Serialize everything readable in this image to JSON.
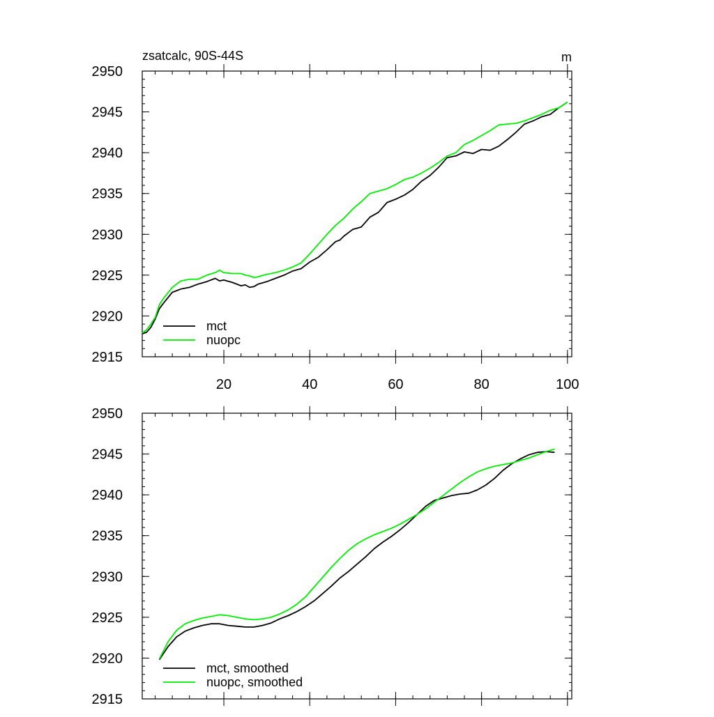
{
  "colors": {
    "mct": "#000000",
    "nuopc": "#00ee00",
    "frame": "#000000",
    "background": "#ffffff"
  },
  "chart_data": [
    {
      "type": "line",
      "title": "zsatcalc, 90S-44S",
      "units": "m",
      "xlim": [
        1,
        101
      ],
      "ylim": [
        2915,
        2950
      ],
      "x_ticks": [
        20,
        40,
        60,
        80,
        100
      ],
      "y_ticks": [
        2915,
        2920,
        2925,
        2930,
        2935,
        2940,
        2945,
        2950
      ],
      "show_x_tick_labels": true,
      "legend_position": "bottom-left",
      "series": [
        {
          "name": "mct",
          "color": "#000000",
          "x": [
            1,
            2,
            3,
            4,
            5,
            6,
            8,
            10,
            12,
            14,
            16,
            18,
            19,
            20,
            22,
            24,
            25,
            26,
            27,
            28,
            30,
            32,
            34,
            36,
            38,
            40,
            42,
            44,
            46,
            47,
            48,
            50,
            52,
            54,
            56,
            58,
            60,
            62,
            64,
            66,
            68,
            70,
            72,
            74,
            76,
            78,
            80,
            82,
            84,
            86,
            88,
            90,
            92,
            94,
            96,
            98,
            100
          ],
          "y": [
            2917.8,
            2918.0,
            2918.6,
            2919.6,
            2920.9,
            2921.6,
            2922.9,
            2923.3,
            2923.5,
            2923.9,
            2924.2,
            2924.6,
            2924.3,
            2924.4,
            2924.1,
            2923.7,
            2923.8,
            2923.5,
            2923.6,
            2923.9,
            2924.2,
            2924.6,
            2925.0,
            2925.5,
            2925.8,
            2926.6,
            2927.2,
            2928.1,
            2929.1,
            2929.3,
            2929.8,
            2930.6,
            2930.9,
            2932.1,
            2932.7,
            2933.9,
            2934.3,
            2934.8,
            2935.5,
            2936.5,
            2937.2,
            2938.2,
            2939.4,
            2939.6,
            2940.1,
            2939.9,
            2940.4,
            2940.3,
            2940.8,
            2941.6,
            2942.5,
            2943.5,
            2943.9,
            2944.4,
            2944.7,
            2945.5,
            2946.2
          ]
        },
        {
          "name": "nuopc",
          "color": "#00ee00",
          "x": [
            1,
            2,
            3,
            4,
            5,
            6,
            8,
            10,
            12,
            14,
            16,
            18,
            19,
            20,
            22,
            24,
            25,
            26,
            27,
            28,
            30,
            32,
            34,
            36,
            38,
            40,
            42,
            44,
            46,
            48,
            50,
            52,
            54,
            56,
            58,
            60,
            62,
            64,
            66,
            68,
            70,
            72,
            74,
            76,
            78,
            80,
            82,
            84,
            86,
            88,
            90,
            92,
            94,
            96,
            98,
            100
          ],
          "y": [
            2917.9,
            2918.3,
            2919.0,
            2919.8,
            2921.4,
            2922.2,
            2923.5,
            2924.3,
            2924.5,
            2924.5,
            2925.0,
            2925.3,
            2925.6,
            2925.3,
            2925.2,
            2925.2,
            2925.0,
            2924.9,
            2924.7,
            2924.8,
            2925.1,
            2925.3,
            2925.6,
            2926.0,
            2926.5,
            2927.6,
            2928.8,
            2930.0,
            2931.1,
            2932.0,
            2933.1,
            2934.0,
            2935.0,
            2935.3,
            2935.6,
            2936.1,
            2936.7,
            2937.0,
            2937.5,
            2938.1,
            2938.8,
            2939.6,
            2940.0,
            2941.0,
            2941.5,
            2942.1,
            2942.7,
            2943.4,
            2943.5,
            2943.6,
            2943.9,
            2944.3,
            2944.7,
            2945.2,
            2945.5,
            2946.2
          ]
        }
      ]
    },
    {
      "type": "line",
      "title": "",
      "xlim": [
        1,
        101
      ],
      "ylim": [
        2915,
        2950
      ],
      "x_ticks": [
        20,
        40,
        60,
        80,
        100
      ],
      "y_ticks": [
        2915,
        2920,
        2925,
        2930,
        2935,
        2940,
        2945,
        2950
      ],
      "show_x_tick_labels": false,
      "legend_position": "bottom-left",
      "series": [
        {
          "name": "mct, smoothed",
          "color": "#000000",
          "x": [
            5,
            7,
            9,
            11,
            13,
            15,
            17,
            19,
            21,
            23,
            25,
            27,
            29,
            31,
            33,
            35,
            37,
            39,
            41,
            43,
            45,
            47,
            49,
            51,
            53,
            55,
            57,
            59,
            61,
            63,
            65,
            67,
            69,
            71,
            73,
            75,
            77,
            79,
            81,
            83,
            85,
            87,
            89,
            91,
            93,
            95,
            97
          ],
          "y": [
            2919.8,
            2921.4,
            2922.6,
            2923.3,
            2923.7,
            2924.0,
            2924.2,
            2924.2,
            2924.0,
            2923.9,
            2923.8,
            2923.8,
            2924.0,
            2924.3,
            2924.8,
            2925.2,
            2925.7,
            2926.3,
            2927.0,
            2927.9,
            2928.8,
            2929.8,
            2930.6,
            2931.5,
            2932.4,
            2933.4,
            2934.2,
            2934.9,
            2935.7,
            2936.6,
            2937.6,
            2938.6,
            2939.3,
            2939.6,
            2939.9,
            2940.1,
            2940.2,
            2940.6,
            2941.2,
            2942.0,
            2943.0,
            2943.8,
            2944.4,
            2944.9,
            2945.2,
            2945.3,
            2945.2
          ]
        },
        {
          "name": "nuopc, smoothed",
          "color": "#00ee00",
          "x": [
            5,
            7,
            9,
            11,
            13,
            15,
            17,
            19,
            21,
            23,
            25,
            27,
            29,
            31,
            33,
            35,
            37,
            39,
            41,
            43,
            45,
            47,
            49,
            51,
            53,
            55,
            57,
            59,
            61,
            63,
            65,
            67,
            69,
            71,
            73,
            75,
            77,
            79,
            81,
            83,
            85,
            87,
            89,
            91,
            93,
            95,
            97
          ],
          "y": [
            2919.9,
            2922.0,
            2923.4,
            2924.2,
            2924.6,
            2924.9,
            2925.1,
            2925.3,
            2925.2,
            2925.0,
            2924.8,
            2924.7,
            2924.8,
            2925.0,
            2925.4,
            2925.9,
            2926.6,
            2927.5,
            2928.7,
            2929.9,
            2931.1,
            2932.2,
            2933.2,
            2934.0,
            2934.6,
            2935.1,
            2935.5,
            2935.9,
            2936.4,
            2937.0,
            2937.6,
            2938.3,
            2939.1,
            2939.9,
            2940.7,
            2941.5,
            2942.2,
            2942.8,
            2943.2,
            2943.5,
            2943.7,
            2943.9,
            2944.2,
            2944.5,
            2944.9,
            2945.3,
            2945.6
          ]
        }
      ]
    }
  ]
}
